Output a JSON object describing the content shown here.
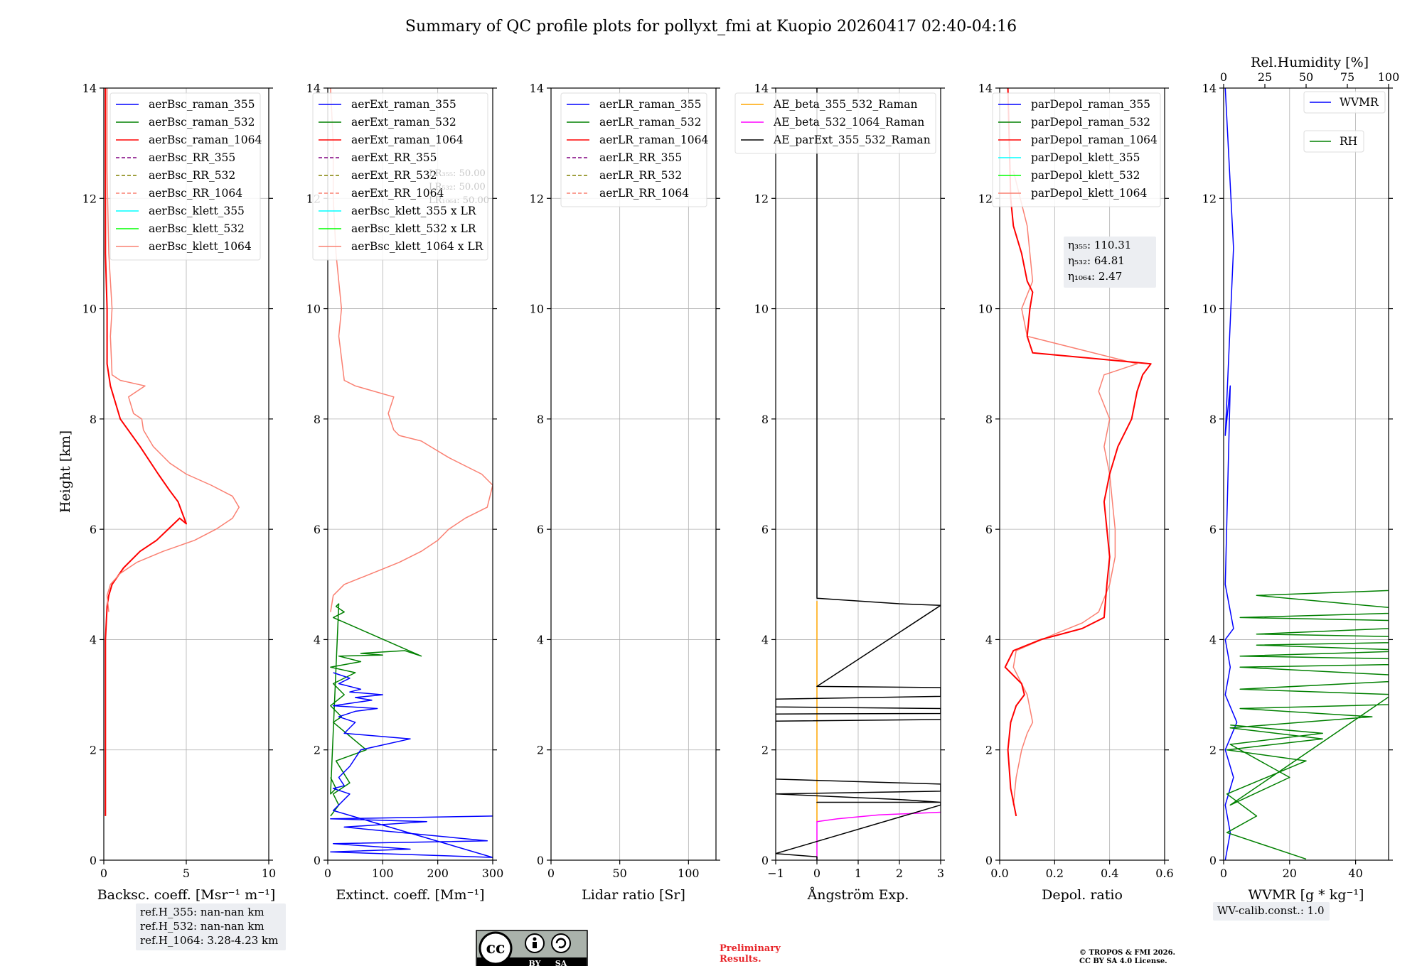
{
  "title": "Summary of QC profile plots for pollyxt_fmi at Kuopio 20260417 02:40-04:16",
  "height_label": "Height [km]",
  "chart_data": [
    {
      "id": "bsc",
      "type": "line",
      "xlabel": "Backsc. coeff. [Msr⁻¹ m⁻¹]",
      "xlim": [
        0,
        10
      ],
      "ylim": [
        0,
        14
      ],
      "xticks": [
        0,
        5,
        10
      ],
      "yticks": [
        0,
        2,
        4,
        6,
        8,
        10,
        12,
        14
      ],
      "grid": true,
      "legend": {
        "position": "top-right",
        "entries": [
          {
            "label": "aerBsc_raman_355",
            "color": "#0000ff",
            "dash": "solid"
          },
          {
            "label": "aerBsc_raman_532",
            "color": "#008000",
            "dash": "solid"
          },
          {
            "label": "aerBsc_raman_1064",
            "color": "#ff0000",
            "dash": "solid"
          },
          {
            "label": "aerBsc_RR_355",
            "color": "#800080",
            "dash": "dashed"
          },
          {
            "label": "aerBsc_RR_532",
            "color": "#808000",
            "dash": "dashed"
          },
          {
            "label": "aerBsc_RR_1064",
            "color": "#fa8072",
            "dash": "dashed"
          },
          {
            "label": "aerBsc_klett_355",
            "color": "#00ffff",
            "dash": "solid"
          },
          {
            "label": "aerBsc_klett_532",
            "color": "#00ff00",
            "dash": "solid"
          },
          {
            "label": "aerBsc_klett_1064",
            "color": "#fa8072",
            "dash": "solid"
          }
        ]
      },
      "series": [
        {
          "name": "aerBsc_raman_1064",
          "color": "#ff0000",
          "width": 2,
          "x": [
            0.1,
            0.1,
            0.2,
            0.3,
            0.5,
            1.2,
            2.2,
            3.2,
            3.9,
            4.6,
            5.0,
            4.5,
            4.0,
            3.3,
            2.2,
            1.0,
            0.4,
            0.2,
            0.2,
            0.1,
            0.1,
            0.1
          ],
          "y": [
            0.8,
            4.0,
            4.6,
            4.8,
            5.0,
            5.3,
            5.6,
            5.8,
            6.0,
            6.2,
            6.1,
            6.5,
            6.7,
            7.0,
            7.5,
            8.0,
            8.6,
            9.0,
            10.0,
            11.0,
            12.5,
            14.0
          ]
        },
        {
          "name": "aerBsc_klett_1064",
          "color": "#fa8072",
          "width": 1.5,
          "x": [
            0.3,
            0.2,
            0.4,
            1.0,
            2.0,
            3.6,
            5.5,
            6.8,
            7.8,
            8.2,
            7.8,
            6.5,
            5.0,
            4.0,
            3.0,
            2.4,
            2.3,
            1.8,
            1.5,
            2.5,
            1.0,
            0.5,
            0.4,
            0.5,
            0.3,
            0.2,
            0.2
          ],
          "y": [
            4.5,
            4.8,
            5.0,
            5.2,
            5.4,
            5.6,
            5.8,
            6.0,
            6.2,
            6.4,
            6.6,
            6.8,
            7.0,
            7.2,
            7.5,
            7.8,
            8.0,
            8.1,
            8.4,
            8.6,
            8.7,
            8.8,
            9.5,
            10.0,
            11.0,
            12.5,
            14.0
          ]
        }
      ],
      "note": [
        "ref.H_355: nan-nan km",
        "ref.H_532: nan-nan km",
        "ref.H_1064: 3.28-4.23 km"
      ]
    },
    {
      "id": "ext",
      "type": "line",
      "xlabel": "Extinct. coeff. [Mm⁻¹]",
      "xlim": [
        0,
        300
      ],
      "ylim": [
        0,
        14
      ],
      "xticks": [
        0,
        100,
        200,
        300
      ],
      "yticks": [
        0,
        2,
        4,
        6,
        8,
        10,
        12,
        14
      ],
      "grid": true,
      "legend": {
        "position": "top-right",
        "entries": [
          {
            "label": "aerExt_raman_355",
            "color": "#0000ff",
            "dash": "solid"
          },
          {
            "label": "aerExt_raman_532",
            "color": "#008000",
            "dash": "solid"
          },
          {
            "label": "aerExt_raman_1064",
            "color": "#ff0000",
            "dash": "solid"
          },
          {
            "label": "aerExt_RR_355",
            "color": "#800080",
            "dash": "dashed"
          },
          {
            "label": "aerExt_RR_532",
            "color": "#808000",
            "dash": "dashed"
          },
          {
            "label": "aerExt_RR_1064",
            "color": "#fa8072",
            "dash": "dashed"
          },
          {
            "label": "aerBsc_klett_355 x LR",
            "color": "#00ffff",
            "dash": "solid"
          },
          {
            "label": "aerBsc_klett_532 x LR",
            "color": "#00ff00",
            "dash": "solid"
          },
          {
            "label": "aerBsc_klett_1064 x LR",
            "color": "#fa8072",
            "dash": "solid"
          }
        ]
      },
      "series": [
        {
          "name": "aerBsc_klett_1064 x LR",
          "color": "#fa8072",
          "width": 1.5,
          "x": [
            5,
            10,
            30,
            80,
            130,
            170,
            200,
            220,
            250,
            290,
            300,
            280,
            220,
            170,
            130,
            120,
            110,
            120,
            50,
            30,
            20,
            25,
            15,
            10,
            10,
            5
          ],
          "y": [
            4.5,
            4.8,
            5.0,
            5.2,
            5.4,
            5.6,
            5.8,
            6.0,
            6.2,
            6.4,
            6.8,
            7.0,
            7.3,
            7.6,
            7.7,
            7.8,
            8.1,
            8.4,
            8.6,
            8.7,
            9.5,
            10.0,
            11.0,
            12.0,
            13.0,
            14.0
          ]
        },
        {
          "name": "aerExt_raman_532",
          "color": "#008000",
          "width": 1.5,
          "x": [
            5,
            20,
            10,
            40,
            15,
            70,
            10,
            25,
            5,
            30,
            10,
            50,
            5,
            60,
            20,
            100,
            60,
            140,
            170,
            10,
            30,
            15,
            20,
            5,
            15,
            5
          ],
          "y": [
            0.8,
            1.0,
            1.2,
            1.4,
            1.8,
            2.0,
            2.5,
            2.6,
            2.8,
            3.0,
            3.2,
            3.4,
            3.5,
            3.6,
            3.7,
            3.72,
            3.75,
            3.8,
            3.7,
            4.4,
            4.5,
            4.6,
            4.65,
            1.2,
            1.3,
            1.5
          ]
        },
        {
          "name": "aerExt_raman_355",
          "color": "#0000ff",
          "width": 1.5,
          "x": [
            300,
            5,
            180,
            30,
            290,
            10,
            150,
            5,
            300,
            10,
            40,
            10,
            30,
            20,
            40,
            60,
            150,
            30,
            50,
            20,
            50,
            90,
            10,
            80,
            50,
            100,
            40,
            60,
            20,
            40,
            10
          ],
          "y": [
            0.8,
            0.75,
            0.7,
            0.6,
            0.35,
            0.3,
            0.2,
            0.15,
            0.05,
            0.9,
            1.2,
            1.3,
            1.35,
            1.5,
            1.7,
            2.0,
            2.2,
            2.3,
            2.5,
            2.6,
            2.7,
            2.75,
            2.8,
            2.9,
            2.95,
            3.0,
            3.05,
            3.1,
            3.2,
            3.3,
            3.4
          ]
        }
      ],
      "note": [
        "LR₃₅₅: 50.00",
        "LR₅₃₂: 50.00",
        "LR₁₀₆₄: 50.00"
      ]
    },
    {
      "id": "lr",
      "type": "line",
      "xlabel": "Lidar ratio [Sr]",
      "xlim": [
        0,
        120
      ],
      "ylim": [
        0,
        14
      ],
      "xticks": [
        0,
        50,
        100
      ],
      "yticks": [
        0,
        2,
        4,
        6,
        8,
        10,
        12,
        14
      ],
      "grid": true,
      "legend": {
        "position": "top-right",
        "entries": [
          {
            "label": "aerLR_raman_355",
            "color": "#0000ff",
            "dash": "solid"
          },
          {
            "label": "aerLR_raman_532",
            "color": "#008000",
            "dash": "solid"
          },
          {
            "label": "aerLR_raman_1064",
            "color": "#ff0000",
            "dash": "solid"
          },
          {
            "label": "aerLR_RR_355",
            "color": "#800080",
            "dash": "dashed"
          },
          {
            "label": "aerLR_RR_532",
            "color": "#808000",
            "dash": "dashed"
          },
          {
            "label": "aerLR_RR_1064",
            "color": "#fa8072",
            "dash": "dashed"
          }
        ]
      },
      "series": []
    },
    {
      "id": "ae",
      "type": "line",
      "xlabel": "Ångström Exp.",
      "xlim": [
        -1,
        3
      ],
      "ylim": [
        0,
        14
      ],
      "xticks": [
        -1,
        0,
        1,
        2,
        3
      ],
      "yticks": [
        0,
        2,
        4,
        6,
        8,
        10,
        12,
        14
      ],
      "grid": true,
      "legend": {
        "position": "top-right",
        "entries": [
          {
            "label": "AE_beta_355_532_Raman",
            "color": "#ffa500",
            "dash": "solid"
          },
          {
            "label": "AE_beta_532_1064_Raman",
            "color": "#ff00ff",
            "dash": "solid"
          },
          {
            "label": "AE_parExt_355_532_Raman",
            "color": "#000000",
            "dash": "solid"
          }
        ]
      },
      "series": [
        {
          "name": "AE_beta_355_532_Raman",
          "color": "#ffa500",
          "width": 1.5,
          "x": [
            0,
            0
          ],
          "y": [
            0.7,
            4.7
          ]
        },
        {
          "name": "AE_beta_532_1064_Raman",
          "color": "#ff00ff",
          "width": 1.5,
          "x": [
            0,
            0,
            0.5,
            1.5,
            3.0
          ],
          "y": [
            0.0,
            0.7,
            0.75,
            0.82,
            0.87
          ]
        },
        {
          "name": "AE_parExt_355_532_Raman",
          "color": "#000000",
          "width": 1.5,
          "x": [
            0,
            0,
            1.0,
            2.0,
            3.0,
            3.0,
            0,
            3.0,
            3.0,
            -1,
            -1,
            3.0,
            3.0,
            -1,
            -1,
            3.0,
            3.0,
            -1,
            -1,
            3.0,
            3.0,
            -1,
            -1,
            2.0,
            3.0,
            3.0,
            0,
            1.3,
            3.0,
            3.0,
            -1,
            -1,
            0,
            0
          ],
          "y": [
            14.0,
            4.75,
            4.7,
            4.65,
            4.62,
            4.62,
            3.15,
            3.13,
            2.97,
            2.92,
            2.78,
            2.75,
            2.66,
            2.65,
            2.52,
            2.55,
            2.55,
            2.52,
            1.47,
            1.38,
            1.25,
            1.2,
            1.2,
            1.1,
            1.05,
            1.05,
            1.05,
            1.05,
            1.05,
            1.0,
            0.12,
            0.12,
            0.06,
            0.0
          ]
        }
      ]
    },
    {
      "id": "depol",
      "type": "line",
      "xlabel": "Depol. ratio",
      "xlim": [
        0,
        0.6
      ],
      "ylim": [
        0,
        14
      ],
      "xticks": [
        0.0,
        0.2,
        0.4,
        0.6
      ],
      "yticks": [
        0,
        2,
        4,
        6,
        8,
        10,
        12,
        14
      ],
      "grid": true,
      "legend": {
        "position": "top-right",
        "entries": [
          {
            "label": "parDepol_raman_355",
            "color": "#0000ff",
            "dash": "solid"
          },
          {
            "label": "parDepol_raman_532",
            "color": "#008000",
            "dash": "solid"
          },
          {
            "label": "parDepol_raman_1064",
            "color": "#ff0000",
            "dash": "solid"
          },
          {
            "label": "parDepol_klett_355",
            "color": "#00ffff",
            "dash": "solid"
          },
          {
            "label": "parDepol_klett_532",
            "color": "#00ff00",
            "dash": "solid"
          },
          {
            "label": "parDepol_klett_1064",
            "color": "#fa8072",
            "dash": "solid"
          }
        ]
      },
      "series": [
        {
          "name": "parDepol_klett_1064",
          "color": "#fa8072",
          "width": 1.5,
          "x": [
            0.05,
            0.06,
            0.08,
            0.1,
            0.12,
            0.1,
            0.05,
            0.06,
            0.2,
            0.3,
            0.36,
            0.4,
            0.42,
            0.42,
            0.41,
            0.4,
            0.38,
            0.4,
            0.36,
            0.38,
            0.5,
            0.1,
            0.08,
            0.12,
            0.1,
            0.05
          ],
          "y": [
            1.0,
            1.5,
            2.0,
            2.3,
            2.5,
            3.0,
            3.5,
            3.8,
            4.1,
            4.3,
            4.5,
            5.0,
            5.5,
            6.0,
            6.5,
            7.0,
            7.5,
            8.0,
            8.5,
            8.8,
            9.0,
            9.5,
            10.0,
            10.5,
            11.5,
            12.5
          ]
        },
        {
          "name": "parDepol_raman_1064",
          "color": "#ff0000",
          "width": 2,
          "x": [
            0.06,
            0.04,
            0.03,
            0.04,
            0.06,
            0.09,
            0.08,
            0.02,
            0.05,
            0.15,
            0.3,
            0.38,
            0.39,
            0.4,
            0.39,
            0.38,
            0.4,
            0.43,
            0.48,
            0.5,
            0.52,
            0.55,
            0.12,
            0.1,
            0.11,
            0.12,
            0.1,
            0.08,
            0.05,
            0.04,
            0.03
          ],
          "y": [
            0.8,
            1.3,
            2.0,
            2.5,
            2.8,
            3.0,
            3.2,
            3.5,
            3.8,
            4.0,
            4.2,
            4.4,
            5.0,
            5.5,
            6.0,
            6.5,
            7.0,
            7.5,
            8.0,
            8.5,
            8.8,
            9.0,
            9.2,
            9.5,
            10.0,
            10.3,
            10.5,
            11.0,
            11.5,
            12.0,
            14.0
          ]
        }
      ],
      "note": [
        "η₃₅₅: 110.31",
        "η₅₃₂: 64.81",
        "η₁₀₆₄: 2.47"
      ]
    },
    {
      "id": "wv",
      "type": "line",
      "xlabel": "WVMR [g * kg⁻¹]",
      "xlim": [
        0,
        50
      ],
      "ylim": [
        0,
        14
      ],
      "xticks": [
        0,
        20,
        40
      ],
      "yticks": [
        0,
        2,
        4,
        6,
        8,
        10,
        12,
        14
      ],
      "grid": true,
      "top_axis": {
        "label": "Rel.Humidity [%]",
        "xlim": [
          0,
          100
        ],
        "xticks": [
          0,
          25,
          50,
          75,
          100
        ]
      },
      "legend": {
        "position": "top-right",
        "entries": [
          {
            "label": "WVMR",
            "color": "#0000ff",
            "dash": "solid"
          },
          {
            "label": "RH",
            "color": "#008000",
            "dash": "solid"
          }
        ]
      },
      "series": [
        {
          "name": "WVMR",
          "color": "#0000ff",
          "width": 1.5,
          "x": [
            0.5,
            2,
            0.5,
            3,
            0.5,
            4,
            0.5,
            2,
            0.5,
            3,
            0.5,
            2,
            0.5,
            3,
            0.5
          ],
          "y": [
            0.0,
            0.5,
            1.0,
            1.5,
            2.0,
            2.5,
            3.0,
            3.5,
            4.0,
            4.2,
            5.0,
            8.6,
            7.7,
            11.1,
            14.0
          ]
        },
        {
          "name": "RH",
          "color": "#008000",
          "width": 1.5,
          "x": [
            25,
            1,
            10,
            1,
            25,
            1,
            30,
            2,
            45,
            5,
            100,
            5,
            70,
            5,
            100,
            5,
            60,
            10,
            100,
            10,
            90,
            5,
            65,
            10,
            100,
            2,
            20,
            2,
            30,
            2
          ],
          "y": [
            0.02,
            0.5,
            0.8,
            1.2,
            1.8,
            2.0,
            2.2,
            2.4,
            2.6,
            2.75,
            2.9,
            3.1,
            3.3,
            3.5,
            3.6,
            3.7,
            3.8,
            3.9,
            4.0,
            4.1,
            4.3,
            4.4,
            4.5,
            4.8,
            5.0,
            1.0,
            1.5,
            2.1,
            2.3,
            2.45
          ]
        }
      ],
      "note": [
        "WV-calib.const.: 1.0"
      ]
    }
  ],
  "footer": {
    "license_badge": [
      "cc",
      "BY",
      "SA"
    ],
    "preliminary": [
      "Preliminary",
      "Results."
    ],
    "copyright": [
      "© TROPOS & FMI 2026.",
      "CC BY SA 4.0 License."
    ]
  }
}
